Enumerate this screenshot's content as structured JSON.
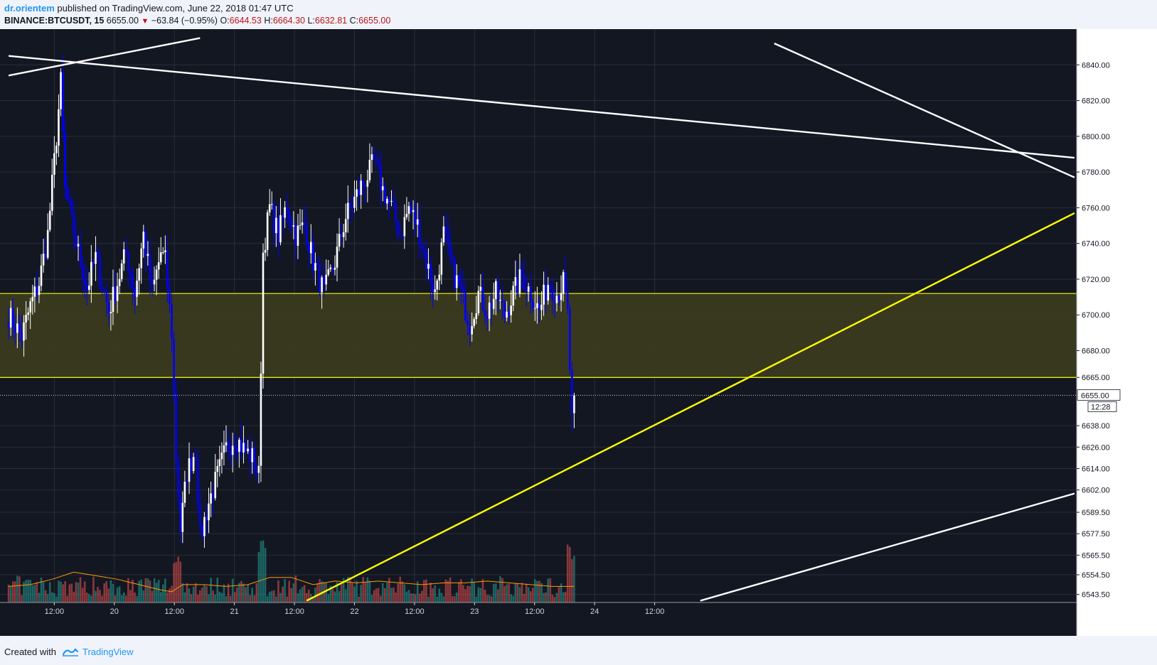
{
  "header": {
    "author": "dr.orientem",
    "published": "published on TradingView.com, June 22, 2018 01:47 UTC",
    "symbol": "BINANCE:BTCUSDT, 15",
    "price": "6655.00",
    "change": "−63.84 (−0.95%)",
    "o_label": "O:",
    "o": "6644.53",
    "h_label": "H:",
    "h": "6664.30",
    "l_label": "L:",
    "l": "6632.81",
    "c_label": "C:",
    "c": "6655.00"
  },
  "footer": {
    "created_with": "Created with",
    "brand": "TradingView"
  },
  "colors": {
    "background": "#131722",
    "grid": "#2a2e39",
    "bull": "#ffffff",
    "bear": "#0000ff",
    "zone_fill": "#3c3c1e",
    "zone_line": "#ffff00",
    "trend_white": "#ffffff",
    "trend_yellow": "#ffff00",
    "vol_up": "#26a69a",
    "vol_down": "#ef5350",
    "vol_ma": "#ff9800"
  },
  "chart_data": {
    "type": "candlestick",
    "symbol": "BINANCE:BTCUSDT",
    "interval": "15",
    "x_ticks": [
      "12:00",
      "20",
      "12:00",
      "21",
      "12:00",
      "22",
      "12:00",
      "23",
      "12:00",
      "24",
      "12:00"
    ],
    "y_ticks": [
      "6840.00",
      "6820.00",
      "6800.00",
      "6780.00",
      "6760.00",
      "6740.00",
      "6720.00",
      "6700.00",
      "6680.00",
      "6665.00",
      "6638.00",
      "6626.00",
      "6614.00",
      "6602.00",
      "6589.50",
      "6577.50",
      "6565.50",
      "6554.50",
      "6543.50"
    ],
    "last_price": "6655.00",
    "countdown": "12:28",
    "zone": {
      "top": 6712,
      "bottom": 6665
    },
    "price_path": [
      [
        0,
        6700
      ],
      [
        6,
        6688
      ],
      [
        10,
        6705
      ],
      [
        14,
        6718
      ],
      [
        18,
        6745
      ],
      [
        22,
        6800
      ],
      [
        24,
        6830
      ],
      [
        26,
        6770
      ],
      [
        29,
        6752
      ],
      [
        32,
        6735
      ],
      [
        36,
        6715
      ],
      [
        40,
        6732
      ],
      [
        46,
        6702
      ],
      [
        50,
        6718
      ],
      [
        54,
        6735
      ],
      [
        58,
        6712
      ],
      [
        62,
        6745
      ],
      [
        66,
        6712
      ],
      [
        70,
        6735
      ],
      [
        72,
        6730
      ],
      [
        75,
        6690
      ],
      [
        77,
        6620
      ],
      [
        79,
        6580
      ],
      [
        82,
        6612
      ],
      [
        86,
        6625
      ],
      [
        88,
        6575
      ],
      [
        92,
        6595
      ],
      [
        96,
        6610
      ],
      [
        100,
        6625
      ],
      [
        104,
        6632
      ],
      [
        108,
        6625
      ],
      [
        112,
        6620
      ],
      [
        115,
        6610
      ],
      [
        117,
        6735
      ],
      [
        120,
        6760
      ],
      [
        124,
        6745
      ],
      [
        128,
        6762
      ],
      [
        132,
        6745
      ],
      [
        136,
        6750
      ],
      [
        140,
        6730
      ],
      [
        145,
        6712
      ],
      [
        150,
        6730
      ],
      [
        155,
        6755
      ],
      [
        158,
        6762
      ],
      [
        162,
        6772
      ],
      [
        166,
        6780
      ],
      [
        168,
        6786
      ],
      [
        172,
        6770
      ],
      [
        176,
        6760
      ],
      [
        180,
        6745
      ],
      [
        184,
        6760
      ],
      [
        188,
        6750
      ],
      [
        192,
        6730
      ],
      [
        196,
        6712
      ],
      [
        200,
        6745
      ],
      [
        204,
        6725
      ],
      [
        208,
        6712
      ],
      [
        212,
        6695
      ],
      [
        216,
        6712
      ],
      [
        220,
        6702
      ],
      [
        224,
        6712
      ],
      [
        228,
        6700
      ],
      [
        232,
        6712
      ],
      [
        236,
        6722
      ],
      [
        240,
        6712
      ],
      [
        244,
        6702
      ],
      [
        248,
        6718
      ],
      [
        252,
        6712
      ],
      [
        255,
        6718
      ],
      [
        257,
        6700
      ],
      [
        259,
        6640
      ],
      [
        260,
        6655
      ]
    ],
    "volume_ma": [
      [
        0,
        6548
      ],
      [
        10,
        6549
      ],
      [
        20,
        6552
      ],
      [
        30,
        6556
      ],
      [
        40,
        6554
      ],
      [
        50,
        6552
      ],
      [
        60,
        6549
      ],
      [
        70,
        6546
      ],
      [
        75,
        6545
      ],
      [
        80,
        6549
      ],
      [
        90,
        6549
      ],
      [
        100,
        6548
      ],
      [
        110,
        6549
      ],
      [
        120,
        6553
      ],
      [
        130,
        6553
      ],
      [
        140,
        6549
      ],
      [
        150,
        6551
      ],
      [
        160,
        6550
      ],
      [
        170,
        6551
      ],
      [
        180,
        6550
      ],
      [
        190,
        6549
      ],
      [
        200,
        6550
      ],
      [
        210,
        6550
      ],
      [
        220,
        6551
      ],
      [
        230,
        6550
      ],
      [
        240,
        6549
      ],
      [
        250,
        6548
      ],
      [
        260,
        6548
      ]
    ],
    "trendlines": [
      {
        "color": "white",
        "from": [
          0,
          6834
        ],
        "to": [
          88,
          6855
        ]
      },
      {
        "color": "white",
        "from": [
          0,
          6845
        ],
        "to": [
          490,
          6788
        ]
      },
      {
        "color": "white",
        "from": [
          352,
          6852
        ],
        "to": [
          490,
          6777
        ]
      },
      {
        "color": "yellow",
        "from": [
          137,
          6540
        ],
        "to": [
          490,
          6757
        ]
      },
      {
        "color": "white",
        "from": [
          318,
          6540
        ],
        "to": [
          490,
          6600
        ]
      }
    ],
    "x_range": [
      -2,
      491
    ],
    "y_range": [
      6539,
      6860
    ]
  }
}
